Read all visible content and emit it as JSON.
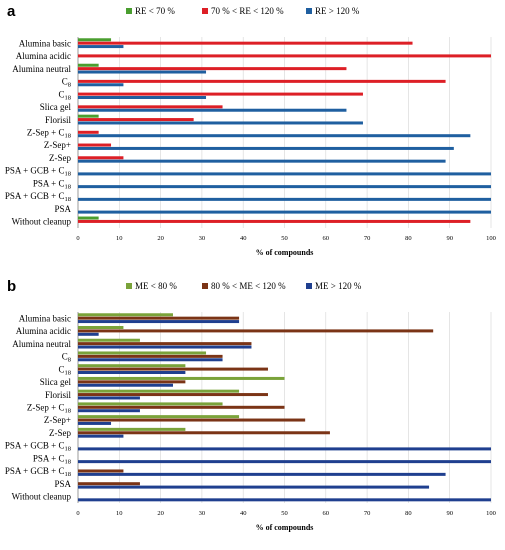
{
  "chart_data": [
    {
      "type": "bar",
      "orientation": "horizontal",
      "panel_label": "a",
      "title": "",
      "xlabel": "% of compounds",
      "ylabel": "",
      "xlim": [
        0,
        100
      ],
      "xticks": [
        "0",
        "10",
        "20",
        "30",
        "40",
        "50",
        "60",
        "70",
        "80",
        "90",
        "100"
      ],
      "categories": [
        "Alumina basic",
        "Alumina acidic",
        "Alumina neutral",
        "C8",
        "C18",
        "Slica gel",
        "Florisil",
        "Z-Sep + C18",
        "Z-Sep+",
        "Z-Sep",
        "PSA + GCB + C18",
        "PSA + C18",
        "PSA + GCB + C18",
        "PSA",
        "Without cleanup"
      ],
      "category_labels": [
        {
          "text": "Alumina basic"
        },
        {
          "text": "Alumina acidic"
        },
        {
          "text": "Alumina neutral"
        },
        {
          "text": "C",
          "sub": "8"
        },
        {
          "text": "C",
          "sub": "18"
        },
        {
          "text": "Slica gel"
        },
        {
          "text": "Florisil"
        },
        {
          "text": "Z-Sep + C",
          "sub": "18"
        },
        {
          "text": "Z-Sep+"
        },
        {
          "text": "Z-Sep"
        },
        {
          "text": "PSA + GCB + C",
          "sub": "18"
        },
        {
          "text": "PSA + C",
          "sub": "18"
        },
        {
          "text": "PSA + GCB + C",
          "sub": "18"
        },
        {
          "text": "PSA"
        },
        {
          "text": "Without cleanup"
        }
      ],
      "series": [
        {
          "name": "RE < 70 %",
          "color": "#4a9e2f",
          "values": [
            8,
            0,
            5,
            0,
            0,
            0,
            5,
            0,
            0,
            0,
            0,
            0,
            0,
            0,
            5
          ]
        },
        {
          "name": "70 % < RE < 120 %",
          "color": "#dd1f26",
          "values": [
            81,
            100,
            65,
            89,
            69,
            35,
            28,
            5,
            8,
            11,
            0,
            0,
            0,
            0,
            95
          ]
        },
        {
          "name": "RE > 120 %",
          "color": "#1f5fa0",
          "values": [
            11,
            0,
            31,
            11,
            31,
            65,
            69,
            95,
            91,
            89,
            100,
            100,
            100,
            100,
            0
          ]
        }
      ],
      "grid": true,
      "legend": "top"
    },
    {
      "type": "bar",
      "orientation": "horizontal",
      "panel_label": "b",
      "title": "",
      "xlabel": "% of compounds",
      "ylabel": "",
      "xlim": [
        0,
        100
      ],
      "xticks": [
        "0",
        "10",
        "20",
        "30",
        "40",
        "50",
        "60",
        "70",
        "80",
        "90",
        "100"
      ],
      "categories": [
        "Alumina basic",
        "Alumina acidic",
        "Alumina neutral",
        "C8",
        "C18",
        "Slica gel",
        "Florisil",
        "Z-Sep + C18",
        "Z-Sep+",
        "Z-Sep",
        "PSA + GCB + C18",
        "PSA + C18",
        "PSA + GCB + C18",
        "PSA",
        "Without cleanup"
      ],
      "category_labels": [
        {
          "text": "Alumina basic"
        },
        {
          "text": "Alumina acidic"
        },
        {
          "text": "Alumina neutral"
        },
        {
          "text": "C",
          "sub": "8"
        },
        {
          "text": "C",
          "sub": "18"
        },
        {
          "text": "Slica gel"
        },
        {
          "text": "Florisil"
        },
        {
          "text": "Z-Sep + C",
          "sub": "18"
        },
        {
          "text": "Z-Sep+"
        },
        {
          "text": "Z-Sep"
        },
        {
          "text": "PSA + GCB + C",
          "sub": "18"
        },
        {
          "text": "PSA + C",
          "sub": "18"
        },
        {
          "text": "PSA + GCB + C",
          "sub": "18"
        },
        {
          "text": "PSA"
        },
        {
          "text": "Without cleanup"
        }
      ],
      "series": [
        {
          "name": "ME < 80 %",
          "color": "#7aa33a",
          "values": [
            23,
            11,
            15,
            31,
            26,
            50,
            39,
            35,
            39,
            26,
            0,
            0,
            0,
            0,
            0
          ]
        },
        {
          "name": "80 % < ME < 120 %",
          "color": "#7b3416",
          "values": [
            39,
            86,
            42,
            35,
            46,
            26,
            46,
            50,
            55,
            61,
            0,
            0,
            11,
            15,
            0
          ]
        },
        {
          "name": "ME > 120 %",
          "color": "#1f3f8f",
          "values": [
            39,
            5,
            42,
            35,
            26,
            23,
            15,
            15,
            8,
            11,
            100,
            100,
            89,
            85,
            100
          ]
        }
      ],
      "grid": true,
      "legend": "top"
    }
  ]
}
